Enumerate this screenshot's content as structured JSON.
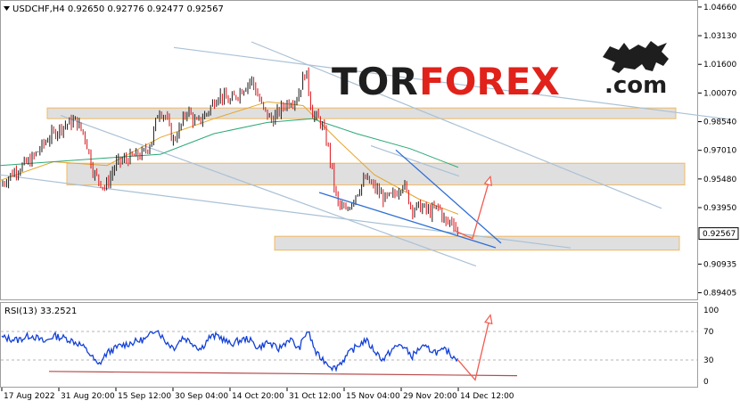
{
  "header": {
    "symbol_line": "USDCHF,H4  0.92650 0.92776 0.92477 0.92567",
    "collapse_icon": "triangle-down-icon"
  },
  "logo": {
    "part1": "TOR",
    "part2": "FOREX",
    "part3": ".com",
    "icon": "bull-icon",
    "colors": {
      "dark": "#1e1e1e",
      "red": "#e0221b"
    }
  },
  "colors": {
    "bull_candle": "#1a1a1a",
    "bear_candle": "#d8131b",
    "ma_fast": "#e3a52c",
    "ma_slow": "#2aa876",
    "zone_fill": "#d9d9d9",
    "zone_border": "#f0b860",
    "trend_line": "#a9c1d6",
    "wedge_line": "#2f6fd6",
    "forecast_arrow": "#f25a4f",
    "rsi_line": "#1240d8",
    "rsi_support": "#b84a4a"
  },
  "chart_data": [
    {
      "type": "candlestick",
      "title": "USDCHF,H4",
      "ohlc_current": {
        "open": 0.9265,
        "high": 0.92776,
        "low": 0.92477,
        "close": 0.92567
      },
      "current_price_label": "0.92567",
      "y_ticks": [
        "1.04660",
        "1.03130",
        "1.01600",
        "1.00070",
        "0.98540",
        "0.97010",
        "0.95480",
        "0.93950",
        "0.90935",
        "0.89405"
      ],
      "ylim": [
        0.8905,
        1.0475
      ],
      "x_ticks": [
        "17 Aug 2022",
        "31 Aug 20:00",
        "15 Sep 12:00",
        "30 Sep 04:00",
        "14 Oct 20:00",
        "31 Oct 12:00",
        "15 Nov 04:00",
        "29 Nov 20:00",
        "14 Dec 12:00"
      ],
      "price_path": [
        [
          0,
          0.951
        ],
        [
          15,
          0.9585
        ],
        [
          35,
          0.965
        ],
        [
          55,
          0.977
        ],
        [
          70,
          0.983
        ],
        [
          85,
          0.986
        ],
        [
          95,
          0.978
        ],
        [
          105,
          0.958
        ],
        [
          118,
          0.95
        ],
        [
          130,
          0.963
        ],
        [
          145,
          0.966
        ],
        [
          160,
          0.968
        ],
        [
          170,
          0.975
        ],
        [
          178,
          0.992
        ],
        [
          186,
          0.988
        ],
        [
          194,
          0.975
        ],
        [
          202,
          0.982
        ],
        [
          210,
          0.992
        ],
        [
          220,
          0.984
        ],
        [
          232,
          0.99
        ],
        [
          245,
          1.0
        ],
        [
          258,
          0.996
        ],
        [
          270,
          1.002
        ],
        [
          282,
          1.008
        ],
        [
          295,
          0.992
        ],
        [
          305,
          0.986
        ],
        [
          320,
          0.995
        ],
        [
          333,
          0.998
        ],
        [
          343,
          1.013
        ],
        [
          350,
          0.99
        ],
        [
          360,
          0.985
        ],
        [
          368,
          0.972
        ],
        [
          378,
          0.942
        ],
        [
          388,
          0.937
        ],
        [
          398,
          0.946
        ],
        [
          410,
          0.955
        ],
        [
          420,
          0.95
        ],
        [
          432,
          0.944
        ],
        [
          442,
          0.946
        ],
        [
          452,
          0.953
        ],
        [
          462,
          0.939
        ],
        [
          472,
          0.94
        ],
        [
          482,
          0.937
        ],
        [
          492,
          0.94
        ],
        [
          500,
          0.931
        ],
        [
          508,
          0.933
        ],
        [
          514,
          0.9257
        ]
      ],
      "moving_averages": [
        {
          "color": "#e3a52c",
          "points": [
            [
              0,
              0.954
            ],
            [
              60,
              0.964
            ],
            [
              120,
              0.962
            ],
            [
              180,
              0.977
            ],
            [
              240,
              0.987
            ],
            [
              300,
              0.996
            ],
            [
              340,
              0.994
            ],
            [
              380,
              0.975
            ],
            [
              420,
              0.957
            ],
            [
              470,
              0.944
            ],
            [
              514,
              0.936
            ]
          ]
        },
        {
          "color": "#2aa876",
          "points": [
            [
              0,
              0.962
            ],
            [
              60,
              0.964
            ],
            [
              120,
              0.966
            ],
            [
              180,
              0.968
            ],
            [
              240,
              0.979
            ],
            [
              300,
              0.985
            ],
            [
              350,
              0.987
            ],
            [
              400,
              0.979
            ],
            [
              460,
              0.971
            ],
            [
              514,
              0.961
            ]
          ]
        }
      ],
      "support_resistance_zones": [
        {
          "x_from": 53,
          "x_to": 758,
          "price_high": 0.9927,
          "price_low": 0.987
        },
        {
          "x_from": 75,
          "x_to": 768,
          "price_high": 0.9632,
          "price_low": 0.9516
        },
        {
          "x_from": 308,
          "x_to": 762,
          "price_high": 0.9242,
          "price_low": 0.9168
        }
      ],
      "trend_lines": [
        {
          "points": [
            [
              195,
              1.025
            ],
            [
              820,
              0.9865
            ]
          ],
          "color": "#a9c1d6"
        },
        {
          "points": [
            [
              282,
              1.028
            ],
            [
              742,
              0.9391
            ]
          ],
          "color": "#a9c1d6"
        },
        {
          "points": [
            [
              0,
              0.957
            ],
            [
              640,
              0.918
            ]
          ],
          "color": "#a9c1d6"
        },
        {
          "points": [
            [
              68,
              0.9887
            ],
            [
              534,
              0.9083
            ]
          ],
          "color": "#a9c1d6"
        },
        {
          "points": [
            [
              416,
              0.9725
            ],
            [
              515,
              0.9563
            ]
          ],
          "color": "#a9c1d6"
        }
      ],
      "wedge_lines": [
        {
          "points": [
            [
              444,
              0.9703
            ],
            [
              562,
              0.9205
            ]
          ]
        },
        {
          "points": [
            [
              358,
              0.9476
            ],
            [
              556,
              0.9181
            ]
          ]
        }
      ],
      "forecast_arrow": {
        "points": [
          [
            510,
            0.9272
          ],
          [
            530,
            0.923
          ],
          [
            550,
            0.956
          ]
        ]
      }
    },
    {
      "type": "line",
      "title": "RSI(13) 33.2521",
      "label": "RSI(13) 33.2521",
      "ylim": [
        0,
        100
      ],
      "levels": [
        "100",
        "70",
        "30",
        "0"
      ],
      "level_values": [
        100,
        70,
        30,
        0
      ],
      "rsi_path": [
        [
          0,
          62
        ],
        [
          20,
          58
        ],
        [
          35,
          65
        ],
        [
          50,
          55
        ],
        [
          60,
          64
        ],
        [
          75,
          60
        ],
        [
          90,
          52
        ],
        [
          100,
          40
        ],
        [
          110,
          22
        ],
        [
          120,
          40
        ],
        [
          135,
          50
        ],
        [
          150,
          55
        ],
        [
          165,
          60
        ],
        [
          175,
          75
        ],
        [
          185,
          57
        ],
        [
          195,
          47
        ],
        [
          205,
          62
        ],
        [
          215,
          55
        ],
        [
          225,
          45
        ],
        [
          235,
          62
        ],
        [
          245,
          64
        ],
        [
          258,
          52
        ],
        [
          268,
          57
        ],
        [
          278,
          60
        ],
        [
          290,
          47
        ],
        [
          300,
          55
        ],
        [
          312,
          45
        ],
        [
          325,
          60
        ],
        [
          335,
          45
        ],
        [
          345,
          72
        ],
        [
          355,
          38
        ],
        [
          365,
          28
        ],
        [
          375,
          18
        ],
        [
          385,
          30
        ],
        [
          395,
          44
        ],
        [
          410,
          58
        ],
        [
          420,
          43
        ],
        [
          430,
          30
        ],
        [
          440,
          45
        ],
        [
          450,
          52
        ],
        [
          462,
          35
        ],
        [
          472,
          48
        ],
        [
          482,
          45
        ],
        [
          492,
          40
        ],
        [
          500,
          44
        ],
        [
          508,
          35
        ],
        [
          514,
          33
        ]
      ],
      "support_line": {
        "points": [
          [
            55,
            14
          ],
          [
            580,
            8
          ]
        ]
      },
      "forecast_arrow": {
        "points": [
          [
            513,
            31
          ],
          [
            533,
            2
          ],
          [
            550,
            93
          ]
        ]
      }
    }
  ]
}
